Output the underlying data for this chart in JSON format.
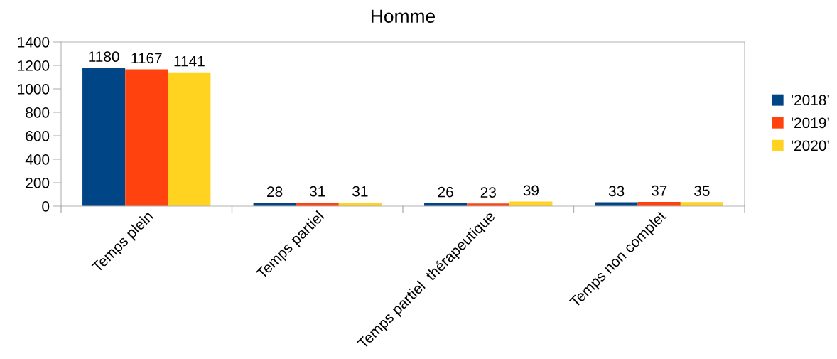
{
  "chart_data": {
    "type": "bar",
    "title": "Homme",
    "categories": [
      "Temps plein",
      "Temps partiel",
      "Temps partiel  thérapeutique",
      "Temps non complet"
    ],
    "series": [
      {
        "name": "'2018’",
        "color": "#004586",
        "values": [
          1180,
          28,
          26,
          33
        ]
      },
      {
        "name": "'2019’",
        "color": "#ff420e",
        "values": [
          1167,
          31,
          23,
          37
        ]
      },
      {
        "name": "'2020’",
        "color": "#ffd320",
        "values": [
          1141,
          31,
          39,
          35
        ]
      }
    ],
    "ylim": [
      0,
      1400
    ],
    "yticks": [
      0,
      200,
      400,
      600,
      800,
      1000,
      1200,
      1400
    ],
    "data_labels": true,
    "legend": "right",
    "grid": false
  }
}
